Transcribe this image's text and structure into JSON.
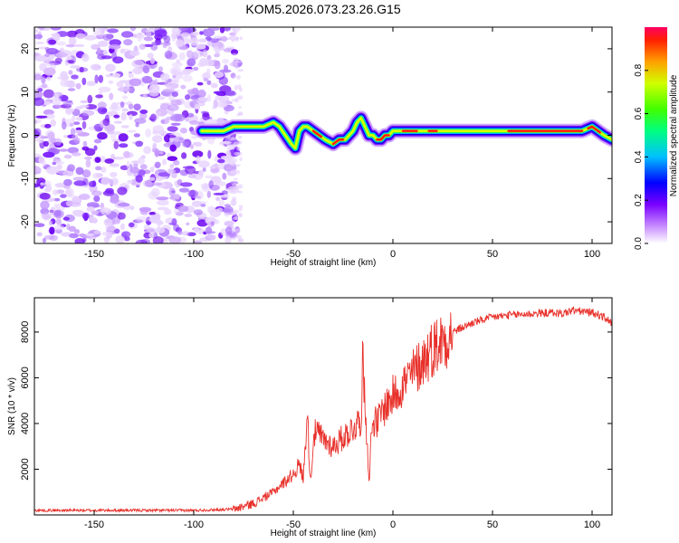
{
  "title": "KOM5.2026.073.23.26.G15",
  "chart_data": [
    {
      "type": "heatmap",
      "name": "spectrogram",
      "xlabel": "Height of straight line (km)",
      "ylabel": "Frequency (Hz)",
      "xlim": [
        -180,
        110
      ],
      "ylim": [
        -25,
        25
      ],
      "xticks": [
        -150,
        -100,
        -50,
        0,
        50,
        100
      ],
      "yticks": [
        -20,
        -10,
        0,
        10,
        20
      ],
      "noise_region_x": [
        -180,
        -78
      ],
      "ridge": {
        "x": [
          -96,
          -90,
          -85,
          -80,
          -75,
          -70,
          -65,
          -60,
          -57,
          -54,
          -51,
          -49,
          -47,
          -45,
          -43,
          -40,
          -37,
          -34,
          -30,
          -27,
          -24,
          -22,
          -20,
          -18,
          -16,
          -14,
          -12,
          -10,
          -8,
          -6,
          -4,
          -2,
          0,
          5,
          10,
          20,
          30,
          40,
          50,
          60,
          70,
          80,
          90,
          95,
          100,
          103,
          106,
          110
        ],
        "y": [
          1,
          1,
          1,
          2,
          2,
          2,
          2,
          3,
          2,
          0,
          -2,
          -3,
          1,
          2,
          2,
          1,
          0,
          -1,
          -2,
          -1,
          -1,
          0,
          1,
          3,
          4,
          2,
          0,
          0,
          -1,
          -1,
          0,
          0,
          1,
          1,
          1,
          1,
          1,
          1,
          1,
          1,
          1,
          1,
          1,
          1,
          2,
          1,
          0,
          -1
        ]
      },
      "colorbar": {
        "label": "Normalized spectral amplitude",
        "ticks": [
          0.0,
          0.2,
          0.4,
          0.6,
          0.8
        ],
        "range": [
          0,
          1
        ]
      }
    },
    {
      "type": "line",
      "name": "snr",
      "xlabel": "Height of straight line (km)",
      "ylabel": "SNR (10 * v/v)",
      "xlim": [
        -180,
        110
      ],
      "ylim": [
        0,
        9500
      ],
      "xticks": [
        -150,
        -100,
        -50,
        0,
        50,
        100
      ],
      "yticks": [
        2000,
        4000,
        6000,
        8000
      ],
      "color": "#e8302a",
      "envelope": {
        "x": [
          -180,
          -100,
          -80,
          -70,
          -60,
          -55,
          -50,
          -47,
          -45,
          -43,
          -42,
          -41,
          -40,
          -38,
          -35,
          -30,
          -25,
          -20,
          -16,
          -15,
          -14,
          -13,
          -12,
          -11,
          -10,
          -8,
          -5,
          0,
          10,
          20,
          30,
          40,
          50,
          60,
          70,
          80,
          85,
          90,
          95,
          100,
          105,
          110
        ],
        "y": [
          200,
          200,
          250,
          500,
          1000,
          1400,
          1800,
          2200,
          1600,
          4600,
          2400,
          1500,
          3500,
          3600,
          3300,
          3000,
          3400,
          3800,
          4200,
          7200,
          4500,
          3500,
          1500,
          3200,
          4200,
          4000,
          4600,
          5200,
          6200,
          7300,
          8000,
          8400,
          8650,
          8750,
          8800,
          8850,
          8800,
          8950,
          8900,
          8850,
          8700,
          8400
        ]
      }
    }
  ],
  "colors": {
    "series": "#e8302a",
    "axis": "#000000",
    "background": "#ffffff"
  }
}
